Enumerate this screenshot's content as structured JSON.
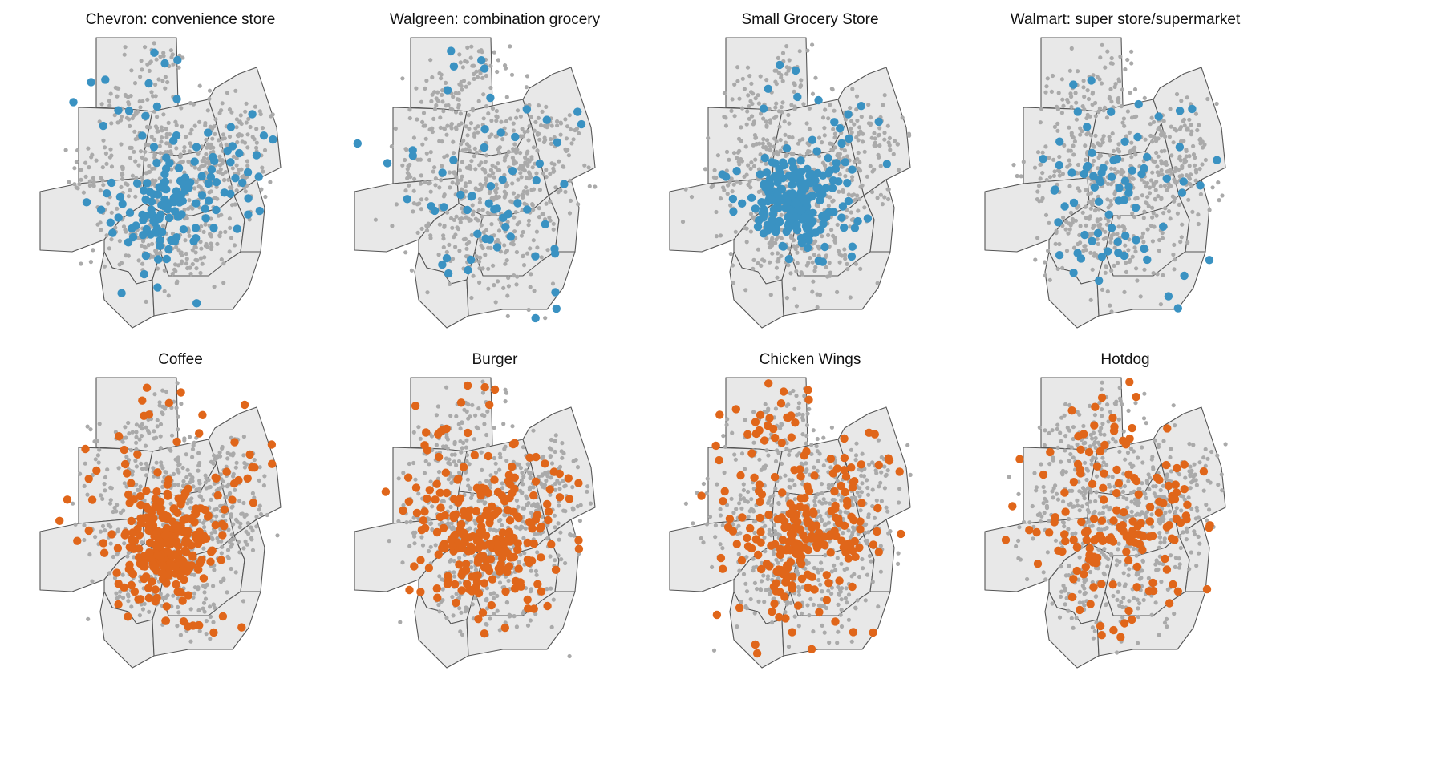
{
  "colors": {
    "background_point": "#aaaaaa",
    "store_point": "#3a92c2",
    "food_point": "#e0661a",
    "region_fill": "#e8e8e8",
    "region_stroke": "#555555"
  },
  "panels": [
    {
      "title": "Chevron: convenience store",
      "category": "store",
      "highlight_count": 150,
      "spread": 1.0,
      "core": 0.5,
      "seed": 11
    },
    {
      "title": "Walgreen: combination grocery",
      "category": "store",
      "highlight_count": 60,
      "spread": 1.1,
      "core": 0.1,
      "seed": 23
    },
    {
      "title": "Small Grocery Store",
      "category": "store",
      "highlight_count": 230,
      "spread": 0.9,
      "core": 0.75,
      "seed": 37
    },
    {
      "title": "Walmart: super store/supermarket",
      "category": "store",
      "highlight_count": 75,
      "spread": 1.05,
      "core": 0.15,
      "seed": 41
    },
    {
      "title": "Coffee",
      "category": "food",
      "highlight_count": 300,
      "spread": 1.0,
      "core": 0.65,
      "seed": 53
    },
    {
      "title": "Burger",
      "category": "food",
      "highlight_count": 250,
      "spread": 1.05,
      "core": 0.35,
      "seed": 67
    },
    {
      "title": "Chicken Wings",
      "category": "food",
      "highlight_count": 230,
      "spread": 1.05,
      "core": 0.3,
      "seed": 71
    },
    {
      "title": "Hotdog",
      "category": "food",
      "highlight_count": 160,
      "spread": 1.1,
      "core": 0.2,
      "seed": 83
    }
  ]
}
